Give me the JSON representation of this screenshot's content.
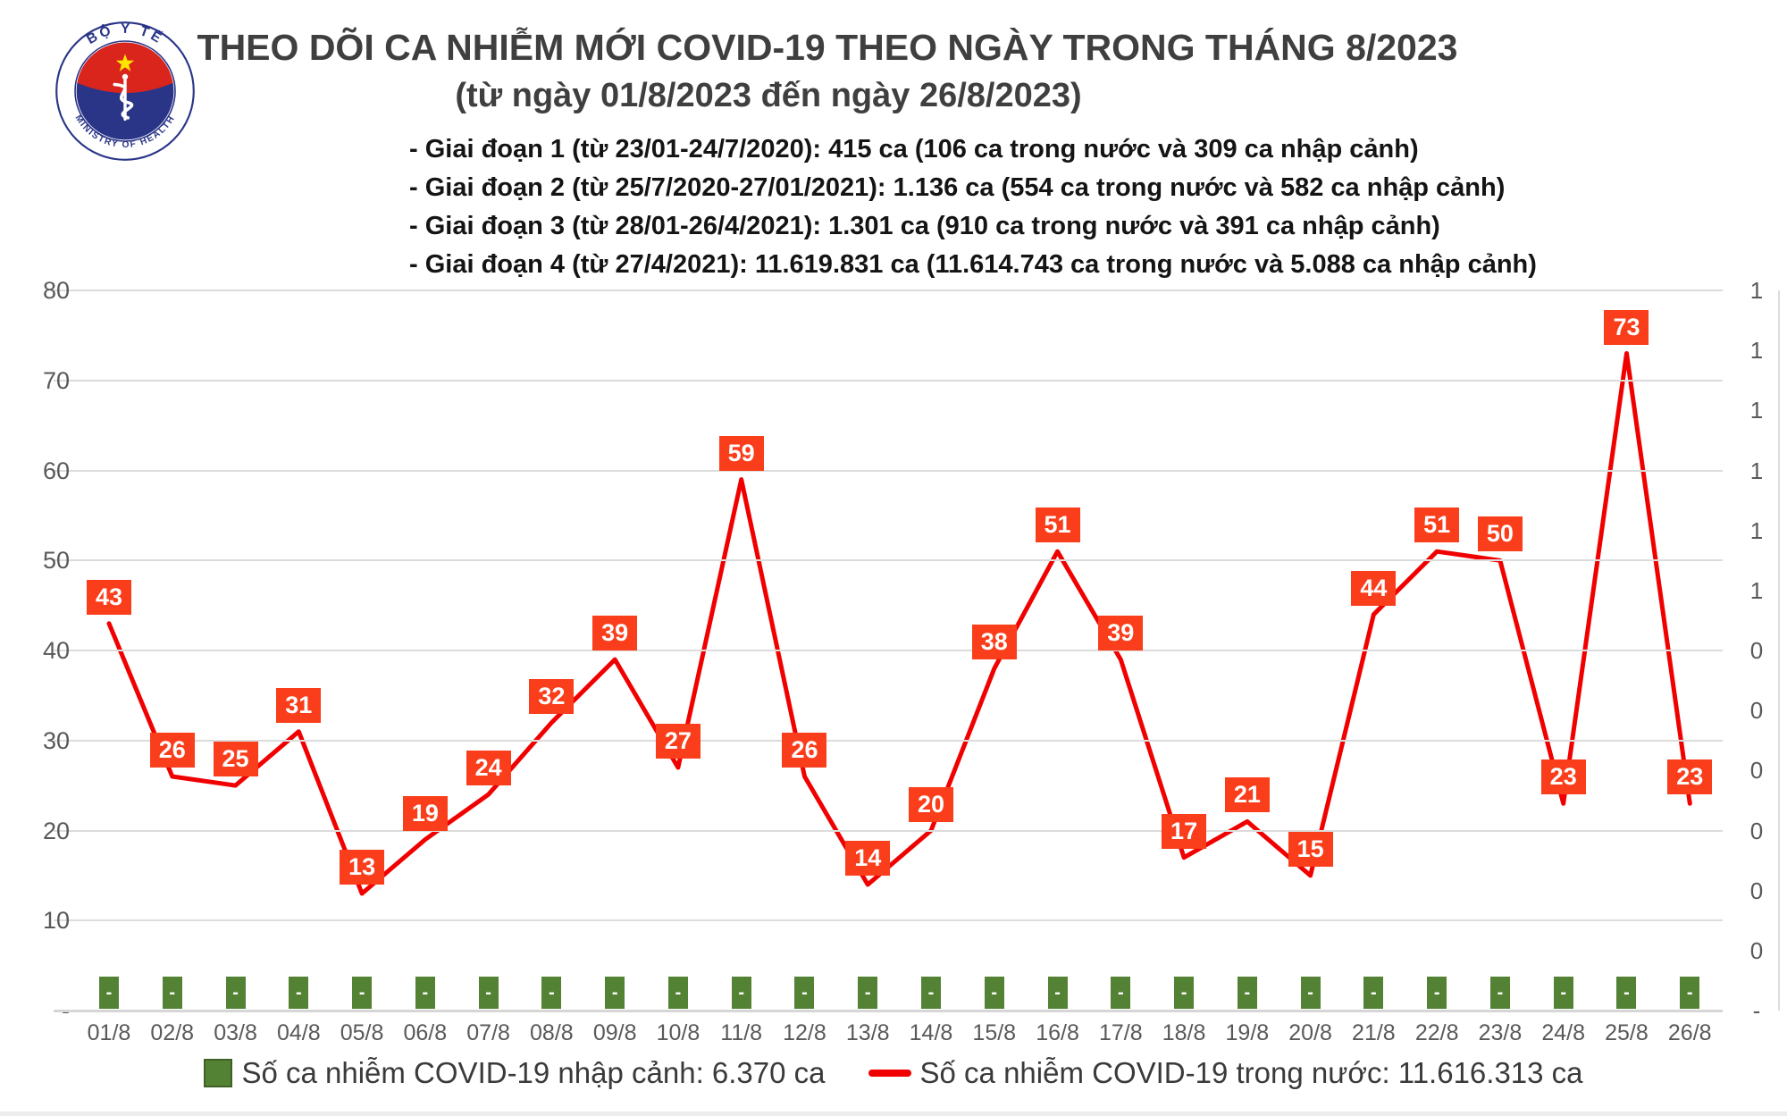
{
  "header": {
    "title": "THEO DÕI CA NHIỄM MỚI COVID-19 THEO NGÀY TRONG THÁNG 8/2023",
    "subtitle": "(từ ngày 01/8/2023 đến ngày 26/8/2023)",
    "notes": [
      "- Giai đoạn 1 (từ 23/01-24/7/2020): 415 ca (106 ca trong nước và 309 ca nhập cảnh)",
      "- Giai đoạn 2 (từ 25/7/2020-27/01/2021): 1.136 ca (554 ca trong nước và 582 ca nhập cảnh)",
      "- Giai đoạn 3 (từ 28/01-26/4/2021): 1.301 ca (910 ca trong nước và 391 ca nhập cảnh)",
      "- Giai đoạn 4 (từ 27/4/2021): 11.619.831 ca (11.614.743 ca trong nước và 5.088 ca nhập cảnh)"
    ],
    "logo": {
      "top_text": "BỘ Y TẾ",
      "bottom_text": "MINISTRY OF HEALTH",
      "ring_color": "#2a3588",
      "flag_red": "#da251d",
      "star_yellow": "#ffe600",
      "disc_blue": "#2a3588"
    }
  },
  "chart_data": {
    "type": "line",
    "title": "THEO DÕI CA NHIỄM MỚI COVID-19 THEO NGÀY TRONG THÁNG 8/2023",
    "subtitle": "(từ ngày 01/8/2023 đến ngày 26/8/2023)",
    "categories": [
      "01/8",
      "02/8",
      "03/8",
      "04/8",
      "05/8",
      "06/8",
      "07/8",
      "08/8",
      "09/8",
      "10/8",
      "11/8",
      "12/8",
      "13/8",
      "14/8",
      "15/8",
      "16/8",
      "17/8",
      "18/8",
      "19/8",
      "20/8",
      "21/8",
      "22/8",
      "23/8",
      "24/8",
      "25/8",
      "26/8"
    ],
    "series": [
      {
        "name": "Số ca nhiễm COVID-19 trong nước",
        "type": "line",
        "color": "#f10000",
        "values": [
          43,
          26,
          25,
          31,
          13,
          19,
          24,
          32,
          39,
          27,
          59,
          26,
          14,
          20,
          38,
          51,
          39,
          17,
          21,
          15,
          44,
          51,
          50,
          23,
          73,
          23
        ]
      },
      {
        "name": "Số ca nhiễm COVID-19 nhập cảnh",
        "type": "bar",
        "color": "#548235",
        "values": [
          0,
          0,
          0,
          0,
          0,
          0,
          0,
          0,
          0,
          0,
          0,
          0,
          0,
          0,
          0,
          0,
          0,
          0,
          0,
          0,
          0,
          0,
          0,
          0,
          0,
          0
        ],
        "bar_label": "-"
      }
    ],
    "left_axis": {
      "min": 0,
      "max": 80,
      "tick_step": 10,
      "tick_labels": [
        "80",
        "70",
        "60",
        "50",
        "40",
        "30",
        "20",
        "10"
      ],
      "zero_label": "-"
    },
    "right_axis": {
      "tick_labels": [
        "1",
        "1",
        "1",
        "1",
        "1",
        "1",
        "0",
        "0",
        "0",
        "0",
        "0",
        "0",
        "-"
      ]
    },
    "grid": true,
    "label_box_color": "#fa3d1a",
    "label_text_color": "#ffffff",
    "gridline_color": "#dcdcdc"
  },
  "legend": {
    "items": [
      {
        "swatch": "bar",
        "color": "#548235",
        "border": "#3f6125",
        "label": "Số ca nhiễm COVID-19 nhập cảnh: 6.370 ca"
      },
      {
        "swatch": "line",
        "color": "#f10000",
        "label": "Số ca nhiễm COVID-19 trong nước: 11.616.313 ca"
      }
    ]
  }
}
